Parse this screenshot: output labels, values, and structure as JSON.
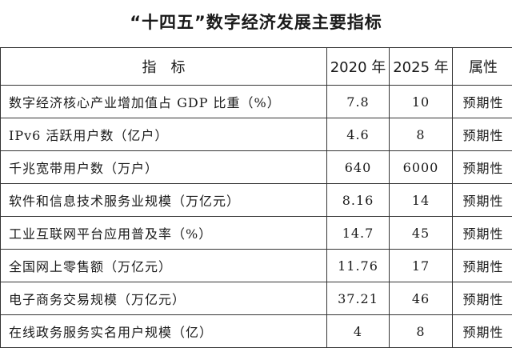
{
  "title": "“十四五”数字经济发展主要指标",
  "headers": {
    "indicator": "指　标",
    "y2020": "2020 年",
    "y2025": "2025 年",
    "attribute": "属性"
  },
  "rows": [
    {
      "name": "数字经济核心产业增加值占 GDP 比重（%）",
      "y2020": "7.8",
      "y2025": "10",
      "attr": "预期性"
    },
    {
      "name": "IPv6 活跃用户数（亿户）",
      "y2020": "4.6",
      "y2025": "8",
      "attr": "预期性"
    },
    {
      "name": "千兆宽带用户数（万户）",
      "y2020": "640",
      "y2025": "6000",
      "attr": "预期性"
    },
    {
      "name": "软件和信息技术服务业规模（万亿元）",
      "y2020": "8.16",
      "y2025": "14",
      "attr": "预期性"
    },
    {
      "name": "工业互联网平台应用普及率（%）",
      "y2020": "14.7",
      "y2025": "45",
      "attr": "预期性"
    },
    {
      "name": "全国网上零售额（万亿元）",
      "y2020": "11.76",
      "y2025": "17",
      "attr": "预期性"
    },
    {
      "name": "电子商务交易规模（万亿元）",
      "y2020": "37.21",
      "y2025": "46",
      "attr": "预期性"
    },
    {
      "name": "在线政务服务实名用户规模（亿）",
      "y2020": "4",
      "y2025": "8",
      "attr": "预期性"
    }
  ]
}
